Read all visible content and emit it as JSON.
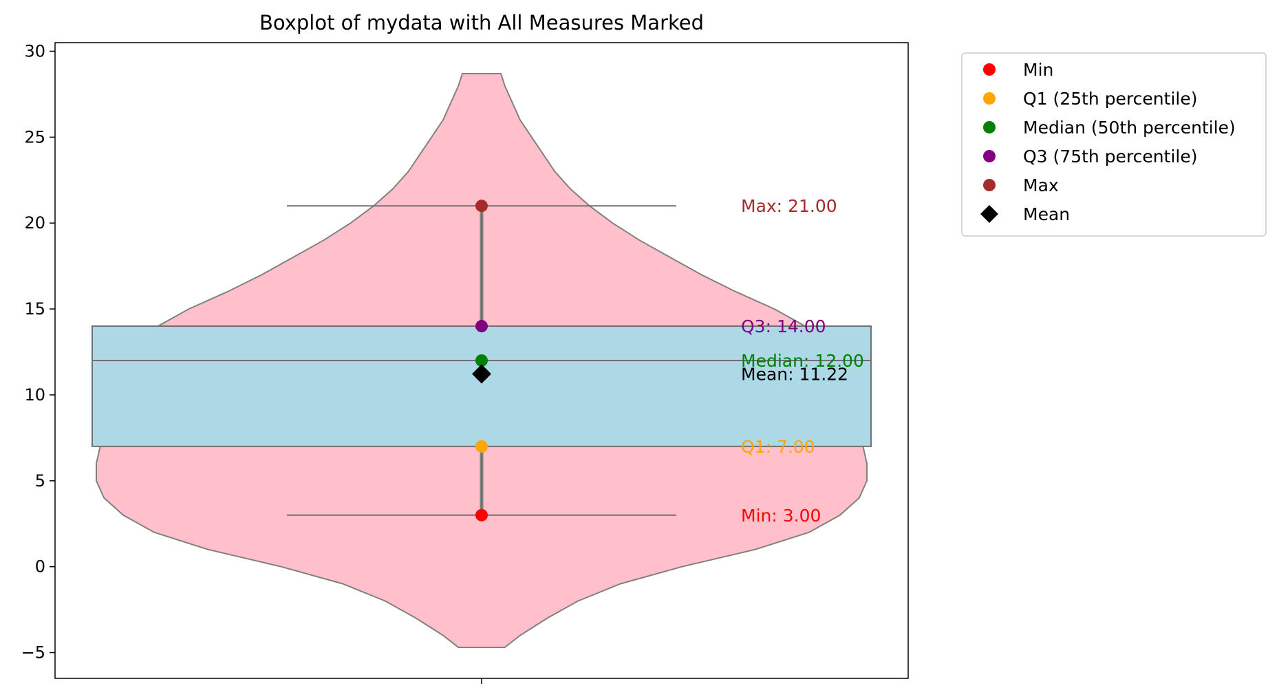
{
  "chart_data": {
    "type": "boxplot",
    "title": "Boxplot of mydata with All Measures Marked",
    "xlabel": "",
    "ylabel": "",
    "ylim": [
      -6.5,
      30.5
    ],
    "yticks": [
      {
        "value": -5,
        "label": "−5"
      },
      {
        "value": 0,
        "label": "0"
      },
      {
        "value": 5,
        "label": "5"
      },
      {
        "value": 10,
        "label": "10"
      },
      {
        "value": 15,
        "label": "15"
      },
      {
        "value": 20,
        "label": "20"
      },
      {
        "value": 25,
        "label": "25"
      },
      {
        "value": 30,
        "label": "30"
      }
    ],
    "grid": false,
    "legend_position": "outside-top-right",
    "box": {
      "q1": 7,
      "median": 12,
      "q3": 14,
      "whisker_low": 3,
      "whisker_high": 21,
      "fill": "#add8e6"
    },
    "violin": {
      "fill": "#ffc0cb",
      "y_min": -4.7,
      "y_max": 28.7,
      "density_profile": [
        [
          -4.7,
          0.06
        ],
        [
          -4.0,
          0.1
        ],
        [
          -3.0,
          0.17
        ],
        [
          -2.0,
          0.25
        ],
        [
          -1.0,
          0.36
        ],
        [
          0.0,
          0.52
        ],
        [
          1.0,
          0.71
        ],
        [
          2.0,
          0.85
        ],
        [
          3.0,
          0.93
        ],
        [
          4.0,
          0.98
        ],
        [
          5.0,
          1.0
        ],
        [
          6.0,
          1.0
        ],
        [
          7.0,
          0.99
        ],
        [
          8.0,
          0.98
        ],
        [
          9.0,
          0.97
        ],
        [
          10.0,
          0.96
        ],
        [
          11.0,
          0.95
        ],
        [
          12.0,
          0.93
        ],
        [
          13.0,
          0.89
        ],
        [
          14.0,
          0.84
        ],
        [
          15.0,
          0.76
        ],
        [
          16.0,
          0.66
        ],
        [
          17.0,
          0.57
        ],
        [
          18.0,
          0.49
        ],
        [
          19.0,
          0.41
        ],
        [
          20.0,
          0.34
        ],
        [
          21.0,
          0.28
        ],
        [
          22.0,
          0.23
        ],
        [
          23.0,
          0.19
        ],
        [
          24.0,
          0.16
        ],
        [
          25.0,
          0.13
        ],
        [
          26.0,
          0.1
        ],
        [
          27.0,
          0.08
        ],
        [
          28.0,
          0.06
        ],
        [
          28.7,
          0.05
        ]
      ]
    },
    "measures": [
      {
        "key": "min",
        "legend": "Min",
        "value": 3.0,
        "color": "#ff0000",
        "marker": "circle",
        "annotation": "Min: 3.00"
      },
      {
        "key": "q1",
        "legend": "Q1 (25th percentile)",
        "value": 7.0,
        "color": "#ffa500",
        "marker": "circle",
        "annotation": "Q1: 7.00"
      },
      {
        "key": "median",
        "legend": "Median (50th percentile)",
        "value": 12.0,
        "color": "#008000",
        "marker": "circle",
        "annotation": "Median: 12.00"
      },
      {
        "key": "q3",
        "legend": "Q3 (75th percentile)",
        "value": 14.0,
        "color": "#800080",
        "marker": "circle",
        "annotation": "Q3: 14.00"
      },
      {
        "key": "max",
        "legend": "Max",
        "value": 21.0,
        "color": "#a52a2a",
        "marker": "circle",
        "annotation": "Max: 21.00"
      },
      {
        "key": "mean",
        "legend": "Mean",
        "value": 11.22,
        "color": "#000000",
        "marker": "diamond",
        "annotation": "Mean: 11.22"
      }
    ]
  }
}
